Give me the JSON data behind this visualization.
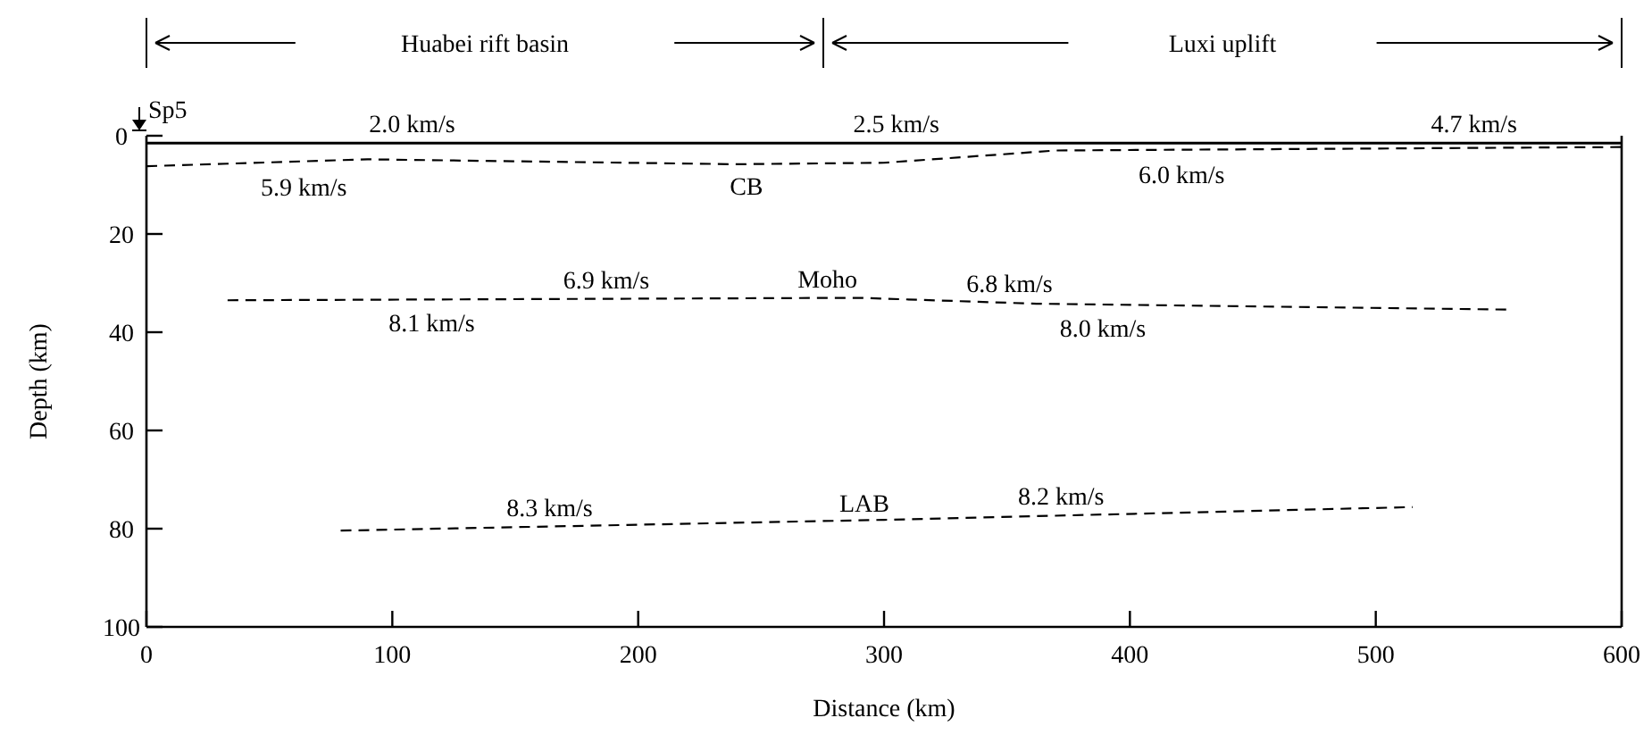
{
  "chart_data": {
    "type": "line",
    "xlabel": "Distance (km)",
    "ylabel": "Depth (km)",
    "xlim": [
      0,
      600
    ],
    "xticks": [
      0,
      100,
      200,
      300,
      400,
      500,
      600
    ],
    "ylim": [
      100,
      0
    ],
    "yticks": [
      0,
      20,
      40,
      60,
      80,
      100
    ],
    "marker": "none",
    "series": [
      {
        "color": "#000000",
        "line_style": "solid",
        "x": [
          0,
          600
        ],
        "values": [
          1.5,
          1.5
        ]
      },
      {
        "color": "#000000",
        "line_style": "dashed",
        "x": [
          0,
          90,
          240,
          300,
          370,
          600
        ],
        "values": [
          6.2,
          4.8,
          5.8,
          5.5,
          3,
          2.3
        ]
      },
      {
        "color": "#000000",
        "line_style": "dashed",
        "x": [
          33,
          290,
          362,
          555
        ],
        "values": [
          33.5,
          33,
          34.2,
          35.4
        ]
      },
      {
        "color": "#000000",
        "line_style": "dashed",
        "x": [
          79,
          300,
          515
        ],
        "values": [
          80.4,
          78.2,
          75.6
        ]
      }
    ],
    "annotations": [
      "Huabei rift basin",
      "Luxi uplift",
      {
        "text": "Sp5",
        "x": 0,
        "y": 0
      },
      {
        "text": "2.0 km/s",
        "x": 108,
        "y": 1.5
      },
      {
        "text": "2.5 km/s",
        "x": 305,
        "y": 1.5
      },
      {
        "text": "4.7 km/s",
        "x": 540,
        "y": 1.5
      },
      {
        "text": "5.9 km/s",
        "x": 64,
        "y": 5.2
      },
      {
        "text": "CB",
        "x": 244,
        "y": 5.8
      },
      {
        "text": "6.0 km/s",
        "x": 421,
        "y": 2.8
      },
      {
        "text": "6.9 km/s",
        "x": 187,
        "y": 33.2
      },
      {
        "text": "Moho",
        "x": 277,
        "y": 33
      },
      {
        "text": "6.8 km/s",
        "x": 351,
        "y": 34
      },
      {
        "text": "8.1 km/s",
        "x": 116,
        "y": 33.3
      },
      {
        "text": "8.0 km/s",
        "x": 389,
        "y": 34.4
      },
      {
        "text": "8.3 km/s",
        "x": 164,
        "y": 79.6
      },
      {
        "text": "LAB",
        "x": 292,
        "y": 78.3
      },
      {
        "text": "8.2 km/s",
        "x": 372,
        "y": 77.3
      }
    ]
  }
}
